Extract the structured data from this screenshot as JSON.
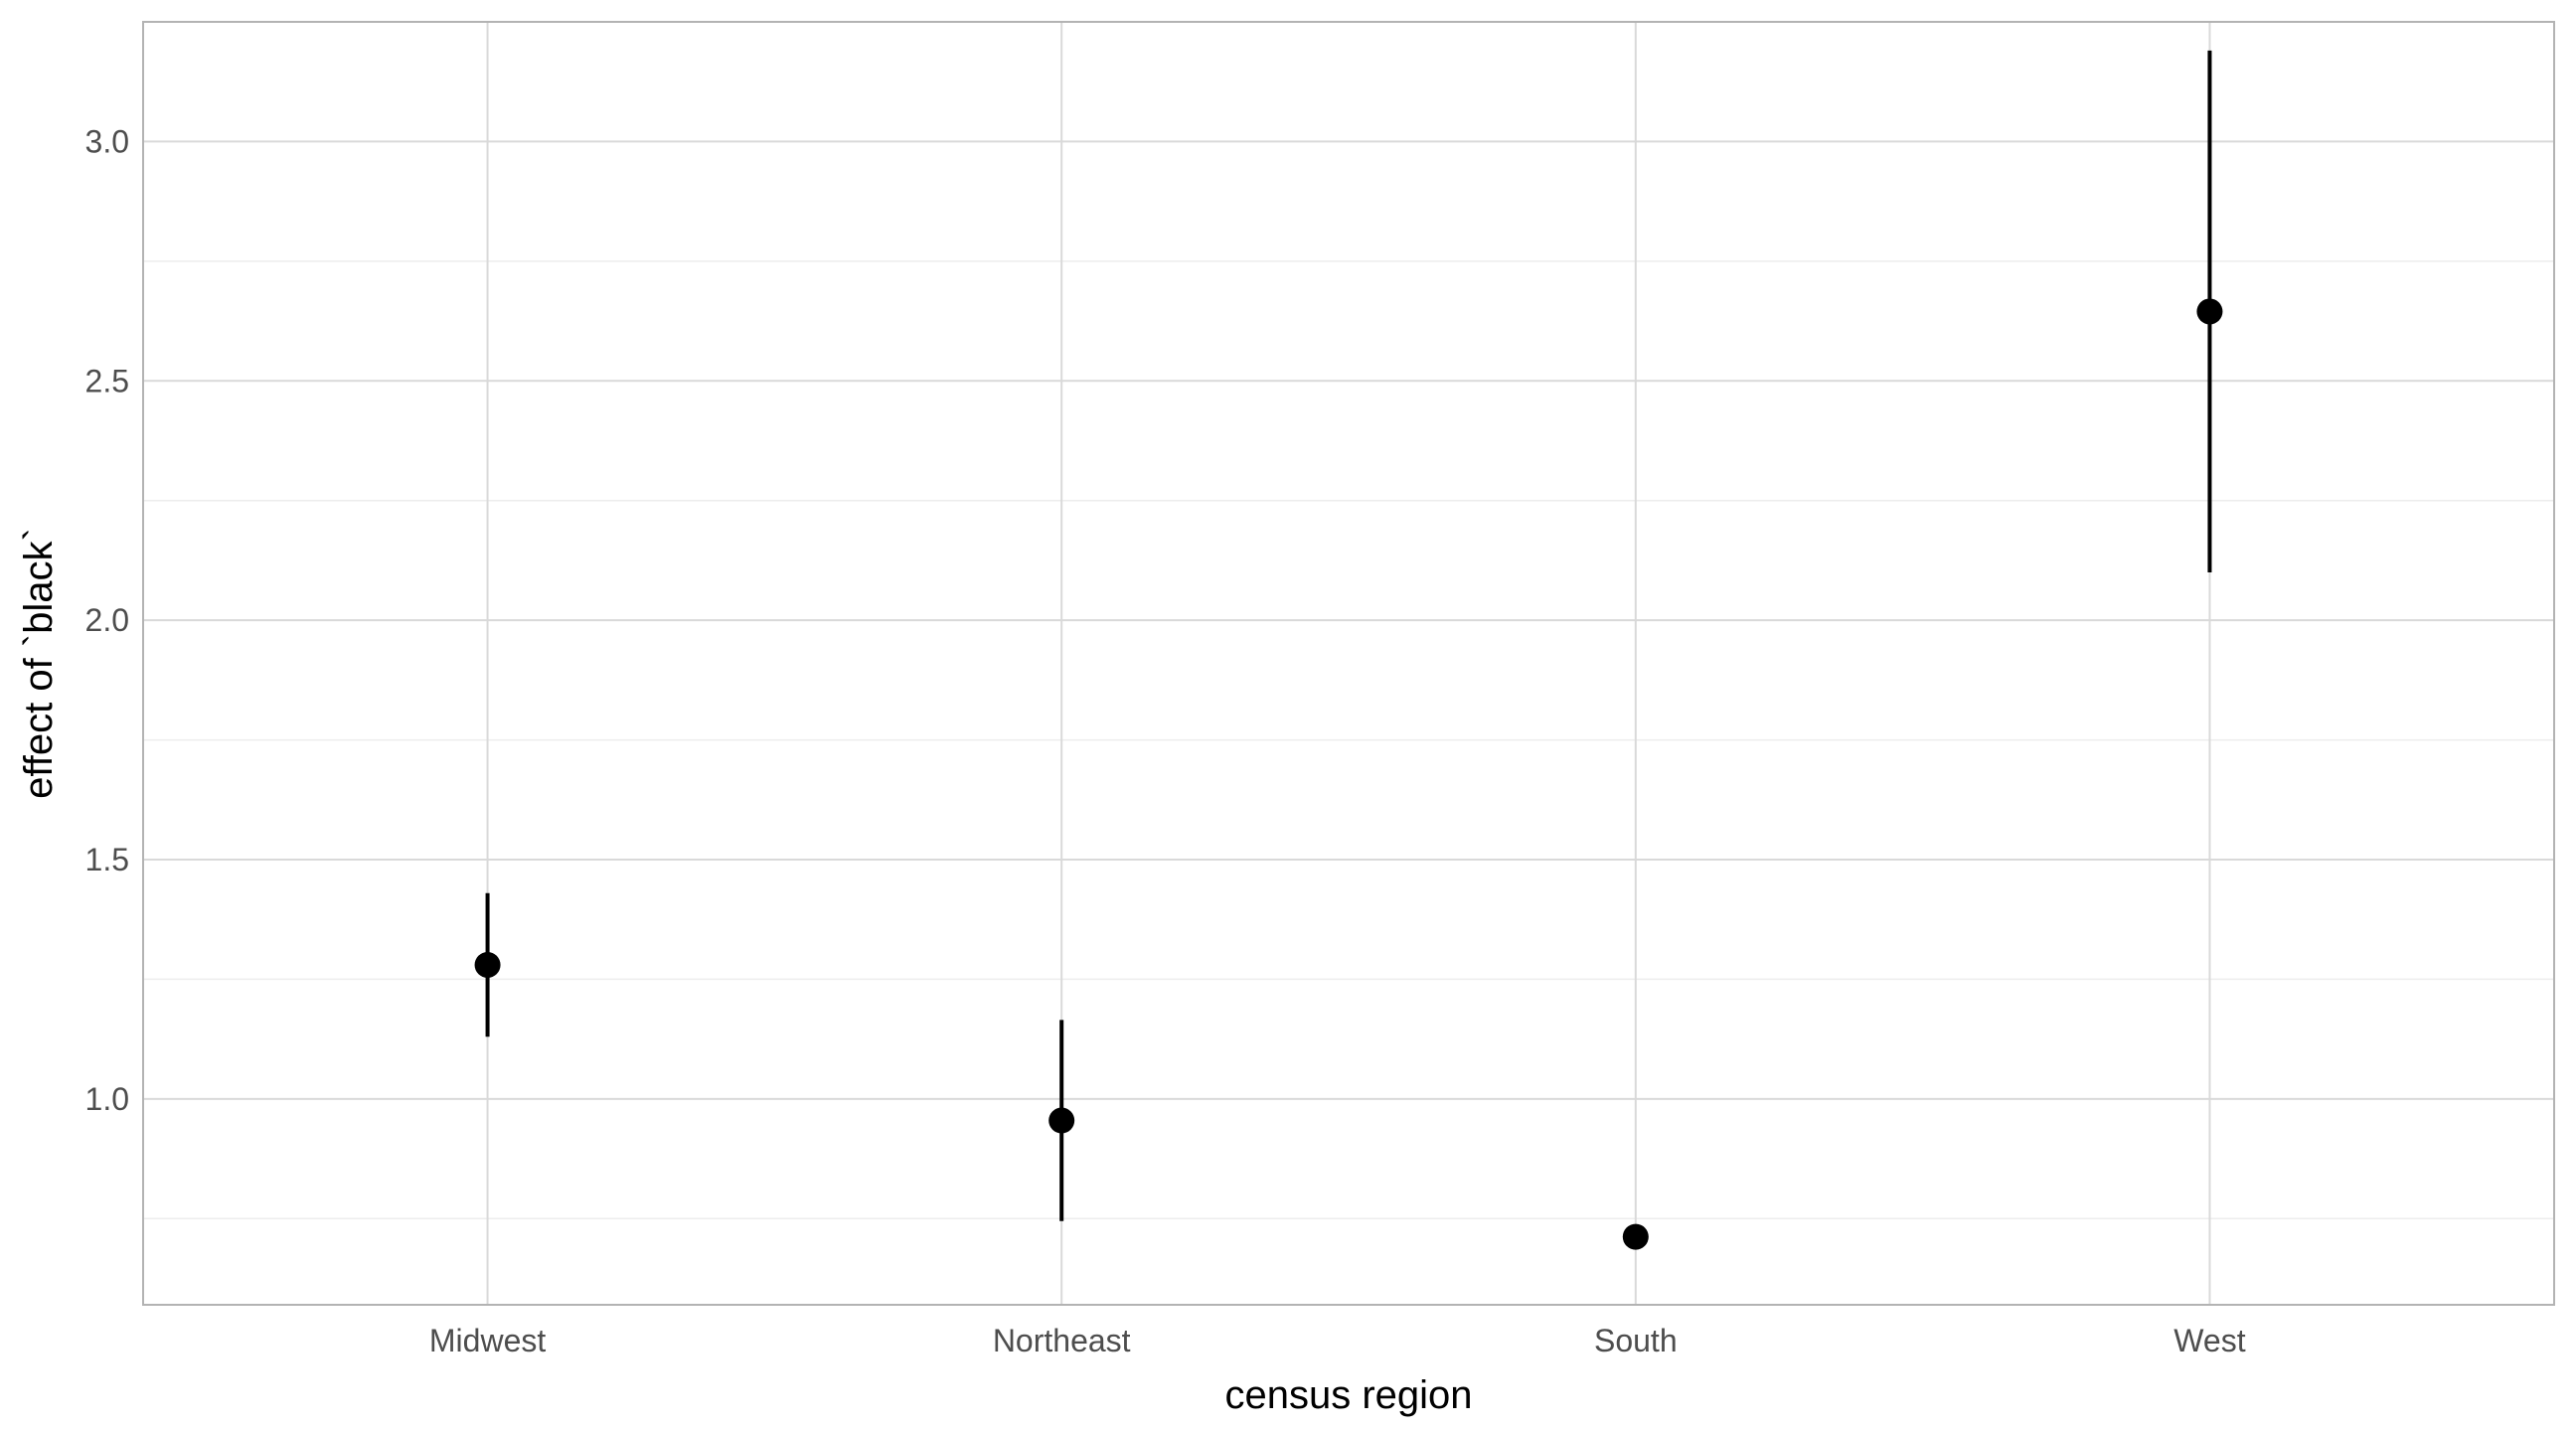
{
  "chart_data": {
    "type": "scatter",
    "xlabel": "census region",
    "ylabel": "effect of `black`",
    "categories": [
      "Midwest",
      "Northeast",
      "South",
      "West"
    ],
    "points": [
      {
        "category": "Midwest",
        "estimate": 1.28,
        "lower": 1.13,
        "upper": 1.43
      },
      {
        "category": "Northeast",
        "estimate": 0.955,
        "lower": 0.745,
        "upper": 1.165
      },
      {
        "category": "South",
        "estimate": 0.712,
        "lower": 0.695,
        "upper": 0.73
      },
      {
        "category": "West",
        "estimate": 2.645,
        "lower": 2.1,
        "upper": 3.19
      }
    ],
    "yticks": [
      1.0,
      1.5,
      2.0,
      2.5,
      3.0
    ],
    "ytick_labels": [
      "1.0",
      "1.5",
      "2.0",
      "2.5",
      "3.0"
    ],
    "ylim": [
      0.57,
      3.25
    ],
    "grid": true,
    "colors": {
      "point": "#000000",
      "grid_major": "#d9d9d9",
      "grid_minor": "#ededed",
      "panel_border": "#b3b3b3"
    }
  }
}
